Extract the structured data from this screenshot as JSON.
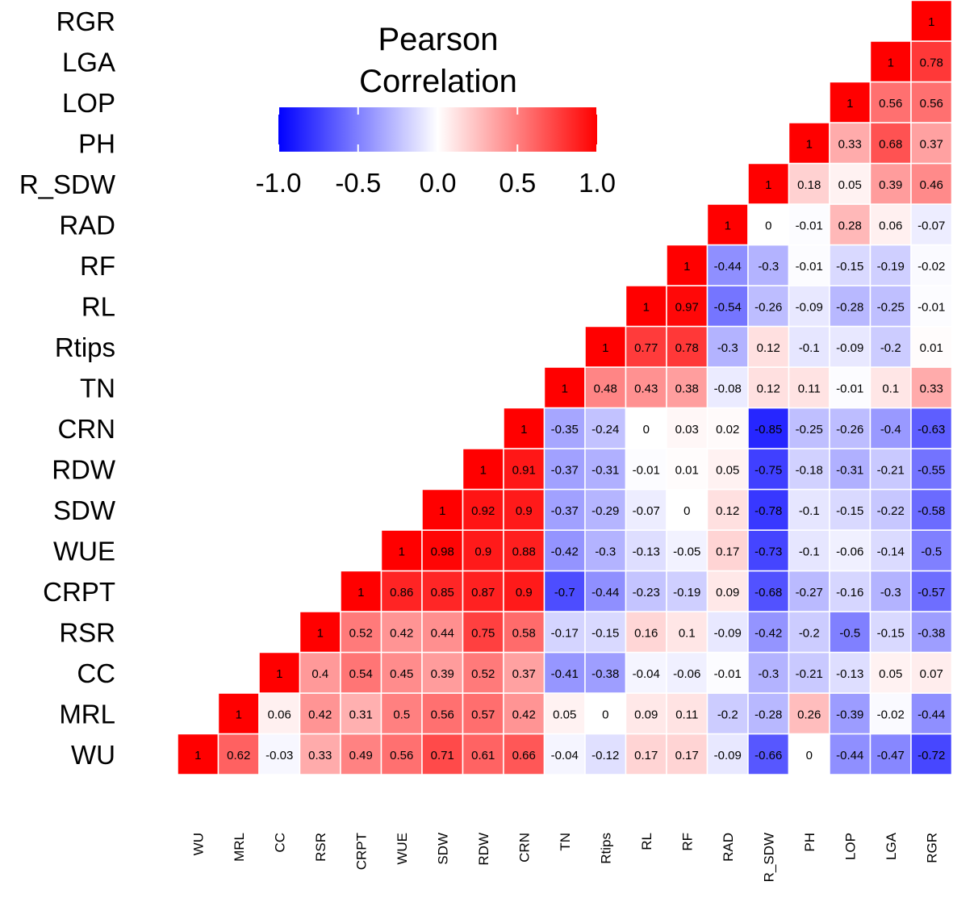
{
  "chart_data": {
    "type": "heatmap",
    "title": "Pearson Correlation",
    "title_lines": [
      "Pearson",
      "Correlation"
    ],
    "xlabel": "",
    "ylabel": "",
    "variables": [
      "WU",
      "MRL",
      "CC",
      "RSR",
      "CRPT",
      "WUE",
      "SDW",
      "RDW",
      "CRN",
      "TN",
      "Rtips",
      "RL",
      "RF",
      "RAD",
      "R_SDW",
      "PH",
      "LOP",
      "LGA",
      "RGR"
    ],
    "value_labels": [
      [
        "1",
        "0.62",
        "-0.03",
        "0.33",
        "0.49",
        "0.56",
        "0.71",
        "0.61",
        "0.66",
        "-0.04",
        "-0.12",
        "0.17",
        "0.17",
        "-0.09",
        "-0.66",
        "0",
        "-0.44",
        "-0.47",
        "-0.72"
      ],
      [
        "",
        "1",
        "0.06",
        "0.42",
        "0.31",
        "0.5",
        "0.56",
        "0.57",
        "0.42",
        "0.05",
        "0",
        "0.09",
        "0.11",
        "-0.2",
        "-0.28",
        "0.26",
        "-0.39",
        "-0.02",
        "-0.44"
      ],
      [
        "",
        "",
        "1",
        "0.4",
        "0.54",
        "0.45",
        "0.39",
        "0.52",
        "0.37",
        "-0.41",
        "-0.38",
        "-0.04",
        "-0.06",
        "-0.01",
        "-0.3",
        "-0.21",
        "-0.13",
        "0.05",
        "0.07"
      ],
      [
        "",
        "",
        "",
        "1",
        "0.52",
        "0.42",
        "0.44",
        "0.75",
        "0.58",
        "-0.17",
        "-0.15",
        "0.16",
        "0.1",
        "-0.09",
        "-0.42",
        "-0.2",
        "-0.5",
        "-0.15",
        "-0.38"
      ],
      [
        "",
        "",
        "",
        "",
        "1",
        "0.86",
        "0.85",
        "0.87",
        "0.9",
        "-0.7",
        "-0.44",
        "-0.23",
        "-0.19",
        "0.09",
        "-0.68",
        "-0.27",
        "-0.16",
        "-0.3",
        "-0.57"
      ],
      [
        "",
        "",
        "",
        "",
        "",
        "1",
        "0.98",
        "0.9",
        "0.88",
        "-0.42",
        "-0.3",
        "-0.13",
        "-0.05",
        "0.17",
        "-0.73",
        "-0.1",
        "-0.06",
        "-0.14",
        "-0.5"
      ],
      [
        "",
        "",
        "",
        "",
        "",
        "",
        "1",
        "0.92",
        "0.9",
        "-0.37",
        "-0.29",
        "-0.07",
        "0",
        "0.12",
        "-0.78",
        "-0.1",
        "-0.15",
        "-0.22",
        "-0.58"
      ],
      [
        "",
        "",
        "",
        "",
        "",
        "",
        "",
        "1",
        "0.91",
        "-0.37",
        "-0.31",
        "-0.01",
        "0.01",
        "0.05",
        "-0.75",
        "-0.18",
        "-0.31",
        "-0.21",
        "-0.55"
      ],
      [
        "",
        "",
        "",
        "",
        "",
        "",
        "",
        "",
        "1",
        "-0.35",
        "-0.24",
        "0",
        "0.03",
        "0.02",
        "-0.85",
        "-0.25",
        "-0.26",
        "-0.4",
        "-0.63"
      ],
      [
        "",
        "",
        "",
        "",
        "",
        "",
        "",
        "",
        "",
        "1",
        "0.48",
        "0.43",
        "0.38",
        "-0.08",
        "0.12",
        "0.11",
        "-0.01",
        "0.1",
        "0.33"
      ],
      [
        "",
        "",
        "",
        "",
        "",
        "",
        "",
        "",
        "",
        "",
        "1",
        "0.77",
        "0.78",
        "-0.3",
        "0.12",
        "-0.1",
        "-0.09",
        "-0.2",
        "0.01"
      ],
      [
        "",
        "",
        "",
        "",
        "",
        "",
        "",
        "",
        "",
        "",
        "",
        "1",
        "0.97",
        "-0.54",
        "-0.26",
        "-0.09",
        "-0.28",
        "-0.25",
        "-0.01"
      ],
      [
        "",
        "",
        "",
        "",
        "",
        "",
        "",
        "",
        "",
        "",
        "",
        "",
        "1",
        "-0.44",
        "-0.3",
        "-0.01",
        "-0.15",
        "-0.19",
        "-0.02"
      ],
      [
        "",
        "",
        "",
        "",
        "",
        "",
        "",
        "",
        "",
        "",
        "",
        "",
        "",
        "1",
        "0",
        "-0.01",
        "0.28",
        "0.06",
        "-0.07"
      ],
      [
        "",
        "",
        "",
        "",
        "",
        "",
        "",
        "",
        "",
        "",
        "",
        "",
        "",
        "",
        "1",
        "0.18",
        "0.05",
        "0.39",
        "0.46"
      ],
      [
        "",
        "",
        "",
        "",
        "",
        "",
        "",
        "",
        "",
        "",
        "",
        "",
        "",
        "",
        "",
        "1",
        "0.33",
        "0.68",
        "0.37"
      ],
      [
        "",
        "",
        "",
        "",
        "",
        "",
        "",
        "",
        "",
        "",
        "",
        "",
        "",
        "",
        "",
        "",
        "1",
        "0.56",
        "0.56"
      ],
      [
        "",
        "",
        "",
        "",
        "",
        "",
        "",
        "",
        "",
        "",
        "",
        "",
        "",
        "",
        "",
        "",
        "",
        "1",
        "0.78"
      ],
      [
        "",
        "",
        "",
        "",
        "",
        "",
        "",
        "",
        "",
        "",
        "",
        "",
        "",
        "",
        "",
        "",
        "",
        "",
        "1"
      ]
    ],
    "color_scale": {
      "range": [
        -1,
        1
      ],
      "low_color": "#0000ff",
      "mid_color": "#ffffff",
      "high_color": "#ff0000",
      "ticks": [
        -1,
        -0.5,
        0,
        0.5,
        1
      ],
      "tick_labels": [
        "-1.0",
        "-0.5",
        "0.0",
        "0.5",
        "1.0"
      ]
    },
    "legend_position": "top-left",
    "grid": true
  }
}
